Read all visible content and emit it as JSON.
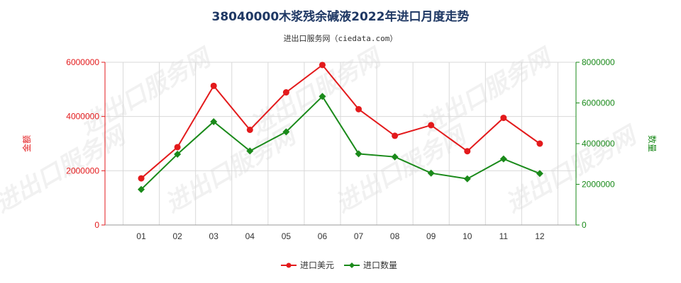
{
  "chart_data": {
    "type": "line",
    "title": "38040000木浆残余碱液2022年进口月度走势",
    "subtitle": "进出口服务网（ciedata.com）",
    "categories": [
      "01",
      "02",
      "03",
      "04",
      "05",
      "06",
      "07",
      "08",
      "09",
      "10",
      "11",
      "12"
    ],
    "y_left": {
      "label": "金额",
      "lim": [
        0,
        6000000
      ],
      "ticks": [
        "0",
        "2000000",
        "4000000",
        "6000000"
      ],
      "color": "#e31a1c"
    },
    "y_right": {
      "label": "数量",
      "lim": [
        0,
        8000000
      ],
      "ticks": [
        "0",
        "2000000",
        "4000000",
        "6000000",
        "8000000"
      ],
      "color": "#1a8a1a"
    },
    "series": [
      {
        "name": "进口美元",
        "axis": "left",
        "color": "#e31a1c",
        "marker": "circle",
        "values": [
          1720000,
          2870000,
          5130000,
          3510000,
          4890000,
          5900000,
          4270000,
          3290000,
          3680000,
          2720000,
          3950000,
          3000000
        ]
      },
      {
        "name": "进口数量",
        "axis": "right",
        "color": "#1a8a1a",
        "marker": "diamond",
        "values": [
          1750000,
          3480000,
          5080000,
          3640000,
          4580000,
          6320000,
          3500000,
          3350000,
          2550000,
          2270000,
          3250000,
          2530000
        ]
      }
    ],
    "grid": true,
    "legend": "bottom-center",
    "watermark": "进出口服务网"
  }
}
